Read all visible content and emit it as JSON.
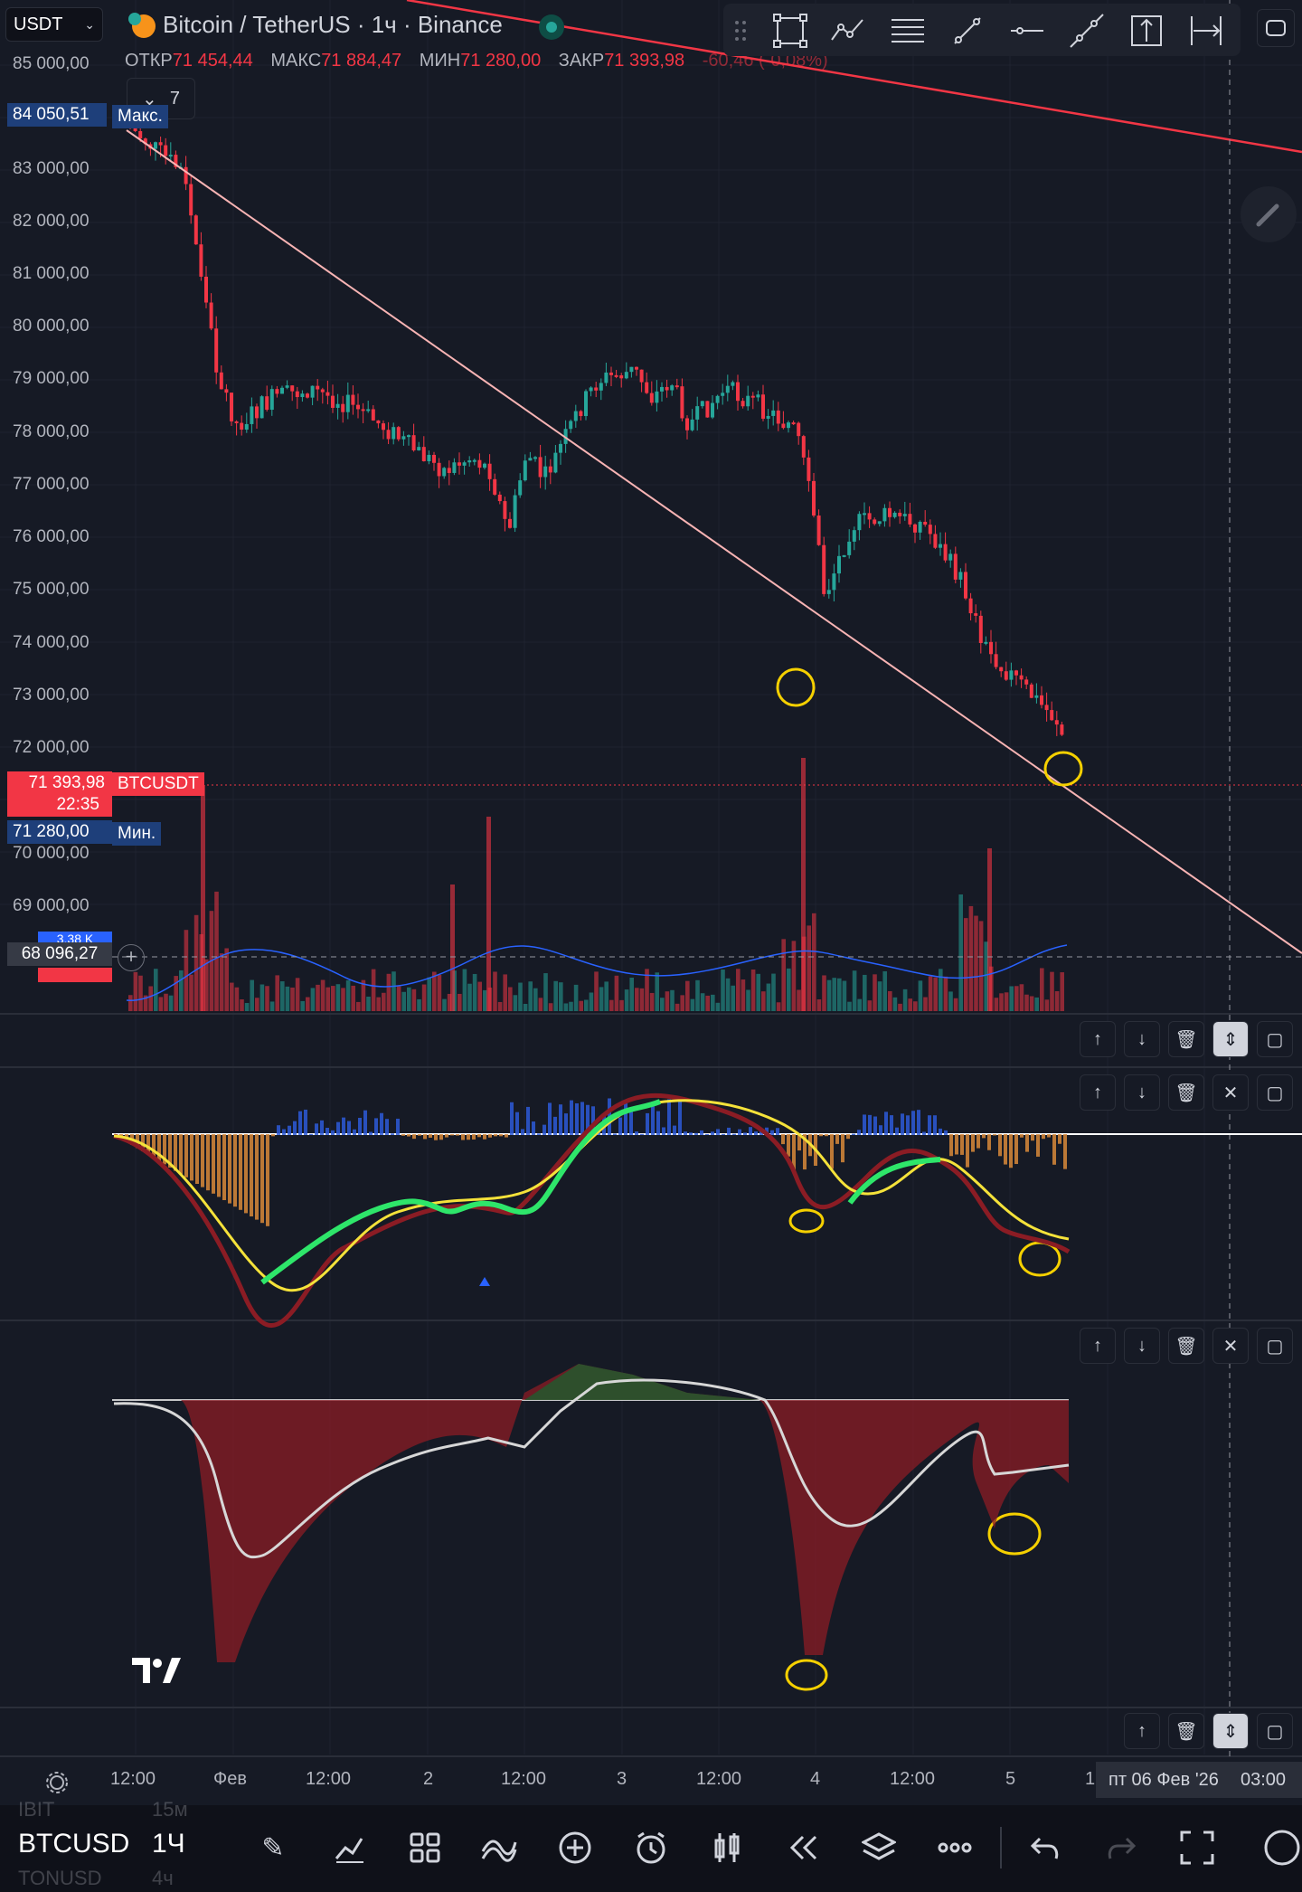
{
  "header": {
    "currency_select": "USDT",
    "title": "Bitcoin / TetherUS · 1ч · Binance",
    "ohlc": [
      {
        "key": "ОТКР",
        "value": "71 454,44"
      },
      {
        "key": "МАКС",
        "value": "71 884,47"
      },
      {
        "key": "МИН",
        "value": "71 280,00"
      },
      {
        "key": "ЗАКР",
        "value": "71 393,98"
      }
    ],
    "change": "-60,46 (-0,08%)",
    "indicators_count": "7"
  },
  "price_axis": {
    "labels": [
      "85 000,00",
      "83 000,00",
      "82 000,00",
      "81 000,00",
      "80 000,00",
      "79 000,00",
      "78 000,00",
      "77 000,00",
      "76 000,00",
      "75 000,00",
      "74 000,00",
      "73 000,00",
      "72 000,00",
      "70 000,00",
      "69 000,00"
    ]
  },
  "tags": {
    "max_price": "84 050,51",
    "max_label": "Макс.",
    "last_price": "71 393,98",
    "countdown": "22:35",
    "symbol": "BTCUSDT",
    "min_price": "71 280,00",
    "min_label": "Мин.",
    "crosshair_price": "68 096,27",
    "volume_tag": "3,38 K"
  },
  "time_axis": {
    "labels": [
      "12:00",
      "Фев",
      "12:00",
      "2",
      "12:00",
      "3",
      "12:00",
      "4",
      "12:00",
      "5",
      "1"
    ],
    "crosshair": "пт 06 Фев '26",
    "crosshair_time": "03:00"
  },
  "watchlist_faded": {
    "above": "IBIT",
    "above_tf": "15м",
    "below": "TONUSD",
    "below_tf": "4ч"
  },
  "bottom_bar": {
    "symbol": "BTCUSD",
    "timeframe": "1Ч",
    "icons": [
      "pencil-icon",
      "chart-type-icon",
      "grid-icon",
      "indicators-icon",
      "plus-icon",
      "alarm-icon",
      "bar-icon",
      "replay-icon",
      "layers-icon",
      "more-icon",
      "undo-icon",
      "redo-icon",
      "fullscreen-icon"
    ]
  },
  "colors": {
    "up": "#26a69a",
    "down": "#f23645",
    "trendline": "#f8b4b4",
    "annotation": "#f5d000",
    "background": "#161a25"
  }
}
